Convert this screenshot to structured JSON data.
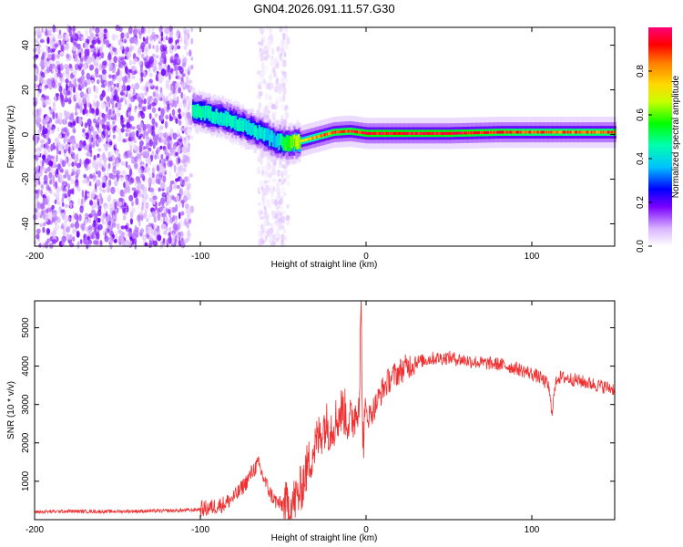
{
  "title": "GN04.2026.091.11.57.G30",
  "chart_data": [
    {
      "type": "heatmap",
      "name": "spectrogram",
      "xlabel": "Height of straight line (km)",
      "ylabel": "Frequency (Hz)",
      "xlim": [
        -200,
        150
      ],
      "ylim": [
        -50,
        48
      ],
      "x_ticks": [
        -200,
        -100,
        0,
        100
      ],
      "y_ticks": [
        -40,
        -20,
        0,
        20,
        40
      ],
      "colorbar": {
        "label": "Normalized spectral amplitude",
        "range": [
          0,
          1
        ],
        "ticks": [
          0.0,
          0.2,
          0.4,
          0.6,
          0.8
        ],
        "tick_labels": [
          "0.0",
          "0.2",
          "0.4",
          "0.6",
          "0.8"
        ]
      },
      "regions": [
        {
          "name": "broadband-noise",
          "x_range": [
            -200,
            -105
          ],
          "freq_range": [
            -50,
            48
          ],
          "amplitude": 0.15
        },
        {
          "name": "noise-burst",
          "x_range": [
            -65,
            -47
          ],
          "freq_range": [
            -50,
            48
          ],
          "amplitude": 0.05
        }
      ],
      "ridge": {
        "x": [
          -105,
          -95,
          -85,
          -75,
          -65,
          -55,
          -48,
          -40,
          -30,
          -20,
          -10,
          0,
          20,
          50,
          80,
          100,
          120,
          150
        ],
        "freq": [
          11,
          9,
          7,
          4,
          1,
          -3,
          -4,
          -3,
          -1,
          1,
          1.5,
          0.5,
          0.5,
          0.5,
          1,
          1,
          1,
          1
        ],
        "amplitude": [
          0.5,
          0.45,
          0.45,
          0.45,
          0.45,
          0.4,
          0.6,
          0.7,
          0.85,
          0.95,
          0.95,
          1.0,
          1.0,
          1.0,
          0.95,
          0.9,
          0.9,
          0.9
        ]
      }
    },
    {
      "type": "line",
      "name": "snr",
      "xlabel": "Height of straight line (km)",
      "ylabel": "SNR (10 * v/v)",
      "xlim": [
        -200,
        150
      ],
      "ylim": [
        0,
        5700
      ],
      "x_ticks": [
        -200,
        -100,
        0,
        100
      ],
      "y_ticks": [
        1000,
        2000,
        3000,
        4000,
        5000
      ],
      "color": "#f03030",
      "series": [
        {
          "name": "SNR",
          "x": [
            -200,
            -180,
            -160,
            -140,
            -120,
            -105,
            -95,
            -85,
            -78,
            -72,
            -68,
            -65,
            -62,
            -58,
            -55,
            -52,
            -48,
            -44,
            -40,
            -36,
            -32,
            -28,
            -25,
            -22,
            -18,
            -14,
            -10,
            -6,
            -4,
            -3,
            -2,
            0,
            2,
            6,
            10,
            15,
            20,
            25,
            30,
            40,
            50,
            60,
            70,
            80,
            90,
            100,
            105,
            110,
            112,
            115,
            120,
            130,
            140,
            150
          ],
          "y": [
            200,
            220,
            210,
            220,
            230,
            250,
            300,
            420,
            650,
            1000,
            1300,
            1450,
            1100,
            700,
            500,
            400,
            350,
            450,
            700,
            1300,
            1800,
            2200,
            2500,
            2400,
            2600,
            2900,
            2500,
            2800,
            3300,
            5700,
            2000,
            2800,
            2700,
            3000,
            3400,
            3700,
            3850,
            4000,
            4100,
            4200,
            4220,
            4150,
            4080,
            4050,
            3950,
            3800,
            3700,
            3500,
            2800,
            3700,
            3700,
            3600,
            3500,
            3400
          ]
        }
      ]
    }
  ]
}
